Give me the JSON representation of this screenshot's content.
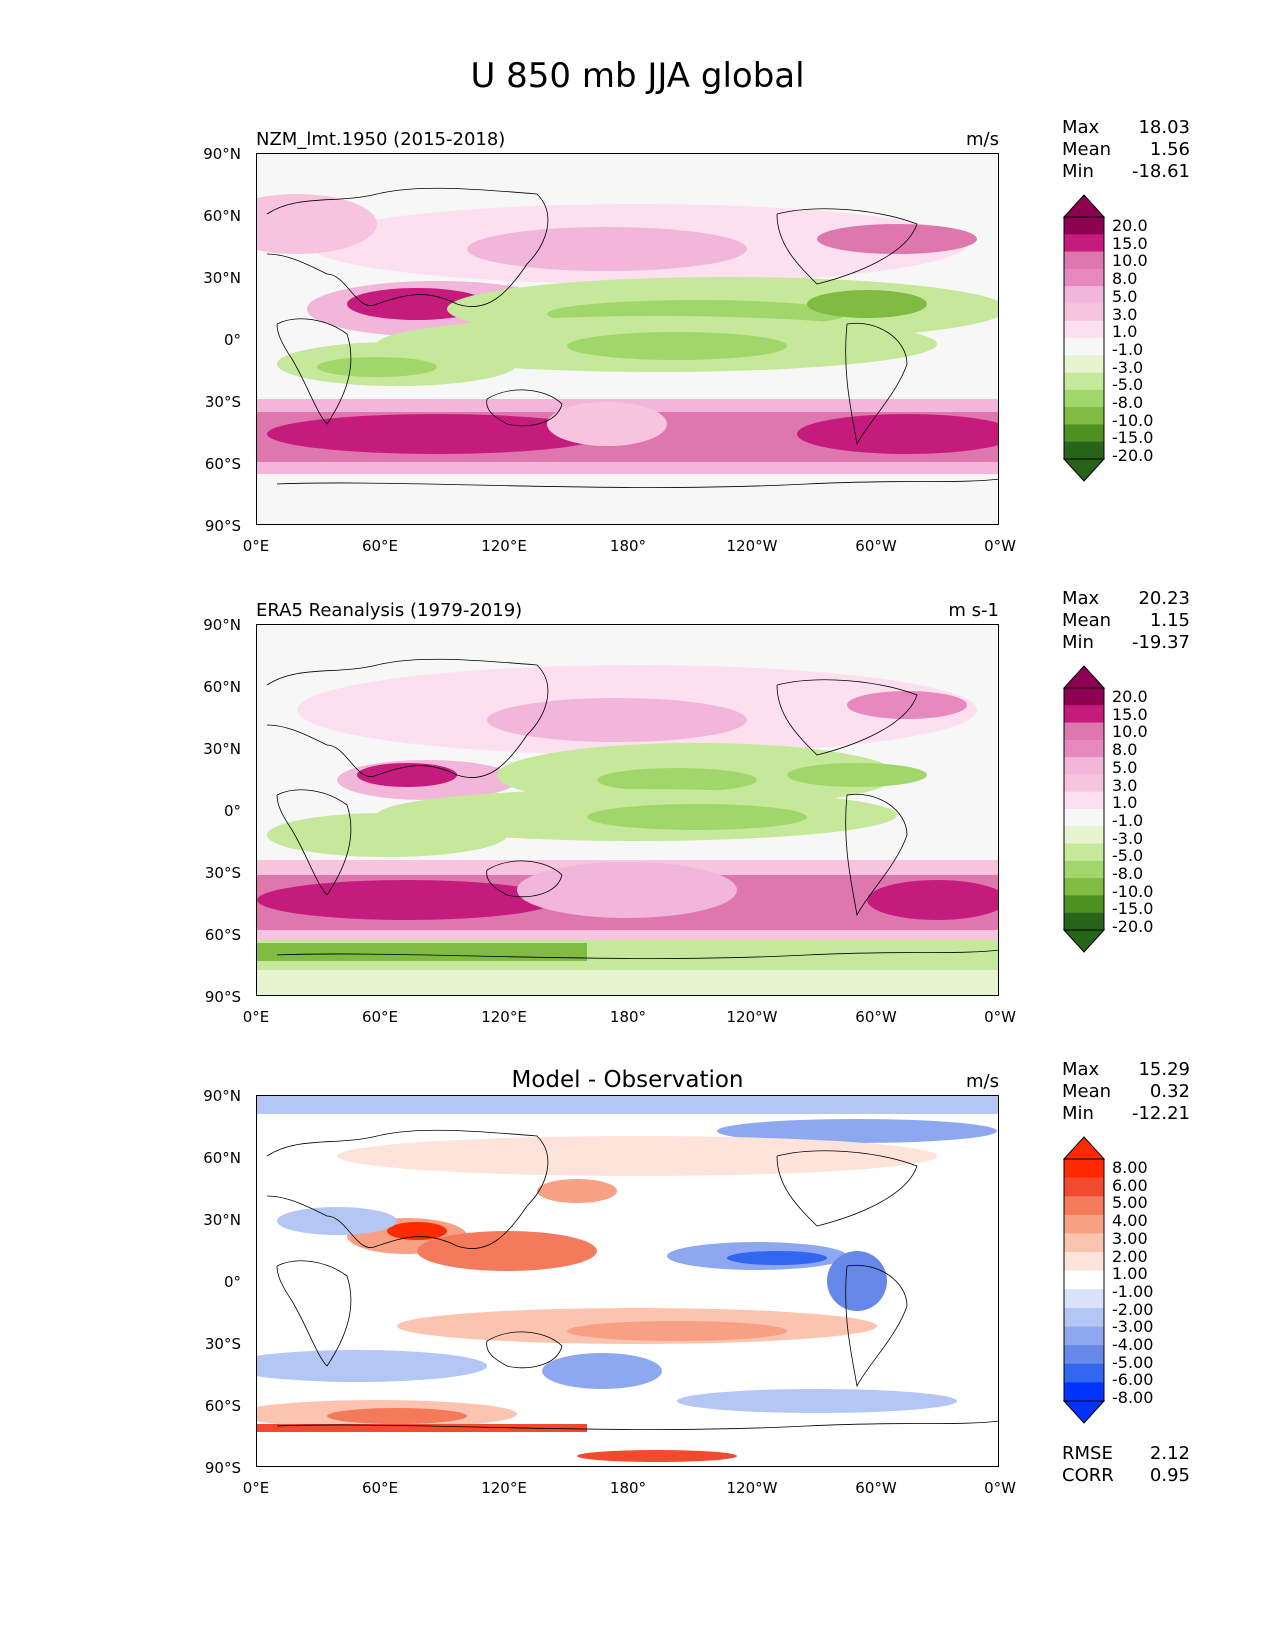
{
  "figure": {
    "title": "U 850 mb JJA global"
  },
  "axes": {
    "y_ticks": [
      "90°N",
      "60°N",
      "30°N",
      "0°",
      "30°S",
      "60°S",
      "90°S"
    ],
    "x_ticks": [
      "0°E",
      "60°E",
      "120°E",
      "180°",
      "120°W",
      "60°W",
      "0°W"
    ]
  },
  "colors": {
    "diverging_pg": [
      "#276419",
      "#4d9221",
      "#7fbc41",
      "#a1d76a",
      "#c6e89b",
      "#e6f5d0",
      "#f7f7f7",
      "#fde0ef",
      "#f7c4e0",
      "#f1b6da",
      "#e788be",
      "#de77ae",
      "#c51b7d",
      "#8e0152"
    ],
    "diverging_br": [
      "#0033ff",
      "#3366ee",
      "#6688e8",
      "#8ea8ef",
      "#b4c6f4",
      "#d8e3fa",
      "#ffffff",
      "#fde3d9",
      "#fbc4b0",
      "#f8a083",
      "#f57a5c",
      "#f24a2f",
      "#ff2a00"
    ]
  },
  "chart_data": [
    {
      "type": "heatmap",
      "title": "NZM_lmt.1950 (2015-2018)",
      "units": "m/s",
      "stats": {
        "max_label": "Max",
        "max": "18.03",
        "mean_label": "Mean",
        "mean": "1.56",
        "min_label": "Min",
        "min": "-18.61"
      },
      "colorbar_levels": [
        "20.0",
        "15.0",
        "10.0",
        "8.0",
        "5.0",
        "3.0",
        "1.0",
        "-1.0",
        "-3.0",
        "-5.0",
        "-8.0",
        "-10.0",
        "-15.0",
        "-20.0"
      ],
      "x_range": [
        0,
        360
      ],
      "y_range": [
        -90,
        90
      ]
    },
    {
      "type": "heatmap",
      "title": "ERA5 Reanalysis (1979-2019)",
      "units": "m s-1",
      "stats": {
        "max_label": "Max",
        "max": "20.23",
        "mean_label": "Mean",
        "mean": "1.15",
        "min_label": "Min",
        "min": "-19.37"
      },
      "colorbar_levels": [
        "20.0",
        "15.0",
        "10.0",
        "8.0",
        "5.0",
        "3.0",
        "1.0",
        "-1.0",
        "-3.0",
        "-5.0",
        "-8.0",
        "-10.0",
        "-15.0",
        "-20.0"
      ],
      "x_range": [
        0,
        360
      ],
      "y_range": [
        -90,
        90
      ]
    },
    {
      "type": "heatmap",
      "title": "Model - Observation",
      "units": "m/s",
      "stats": {
        "max_label": "Max",
        "max": "15.29",
        "mean_label": "Mean",
        "mean": "0.32",
        "min_label": "Min",
        "min": "-12.21"
      },
      "colorbar_levels": [
        "8.00",
        "6.00",
        "5.00",
        "4.00",
        "3.00",
        "2.00",
        "1.00",
        "-1.00",
        "-2.00",
        "-3.00",
        "-4.00",
        "-5.00",
        "-6.00",
        "-8.00"
      ],
      "metrics": {
        "rmse_label": "RMSE",
        "rmse": "2.12",
        "corr_label": "CORR",
        "corr": "0.95"
      },
      "x_range": [
        0,
        360
      ],
      "y_range": [
        -90,
        90
      ]
    }
  ]
}
